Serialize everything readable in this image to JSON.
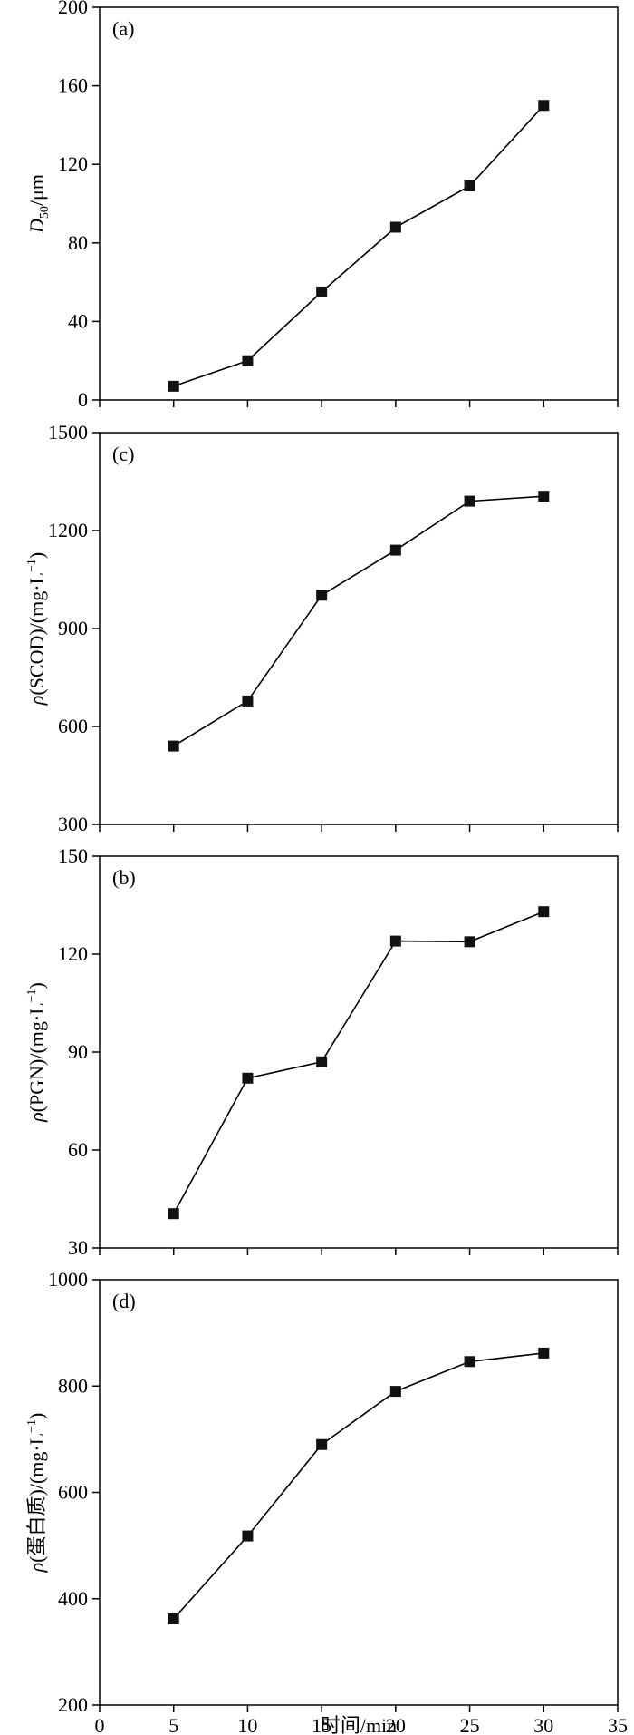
{
  "chart_data": [
    {
      "type": "line",
      "panel_label": "(a)",
      "ylabel_symbol": "D",
      "ylabel_sub": "50",
      "ylabel_rest": "/μm",
      "ylim": [
        0,
        200
      ],
      "yticks": [
        0,
        40,
        80,
        120,
        160,
        200
      ],
      "xlim": [
        0,
        35
      ],
      "series": [
        {
          "x": [
            5,
            10,
            15,
            20,
            25,
            30
          ],
          "values": [
            7,
            20,
            55,
            88,
            109,
            150
          ]
        }
      ]
    },
    {
      "type": "line",
      "panel_label": "(c)",
      "ylabel_symbol": "ρ",
      "ylabel_rest": "(SCOD)/(mg·L",
      "ylabel_sup": "−1",
      "ylabel_end": ")",
      "ylim": [
        300,
        1500
      ],
      "yticks": [
        300,
        600,
        900,
        1200,
        1500
      ],
      "xlim": [
        0,
        35
      ],
      "series": [
        {
          "x": [
            5,
            10,
            15,
            20,
            25,
            30
          ],
          "values": [
            540,
            678,
            1002,
            1140,
            1290,
            1305
          ]
        }
      ]
    },
    {
      "type": "line",
      "panel_label": "(b)",
      "ylabel_symbol": "ρ",
      "ylabel_rest": "(PGN)/(mg·L",
      "ylabel_sup": "−1",
      "ylabel_end": ")",
      "ylim": [
        30,
        150
      ],
      "yticks": [
        30,
        60,
        90,
        120,
        150
      ],
      "xlim": [
        0,
        35
      ],
      "series": [
        {
          "x": [
            5,
            10,
            15,
            20,
            25,
            30
          ],
          "values": [
            40.5,
            82,
            87,
            124,
            123.8,
            133
          ]
        }
      ]
    },
    {
      "type": "line",
      "panel_label": "(d)",
      "ylabel_symbol": "ρ",
      "ylabel_rest": "(蛋白质)/(mg·L",
      "ylabel_sup": "−1",
      "ylabel_end": ")",
      "ylim": [
        200,
        1000
      ],
      "yticks": [
        200,
        400,
        600,
        800,
        1000
      ],
      "xlim": [
        0,
        35
      ],
      "xticks": [
        0,
        5,
        10,
        15,
        20,
        25,
        30,
        35
      ],
      "xlabel": "时间/min",
      "series": [
        {
          "x": [
            5,
            10,
            15,
            20,
            25,
            30
          ],
          "values": [
            362,
            518,
            690,
            790,
            846,
            862
          ]
        }
      ]
    }
  ]
}
